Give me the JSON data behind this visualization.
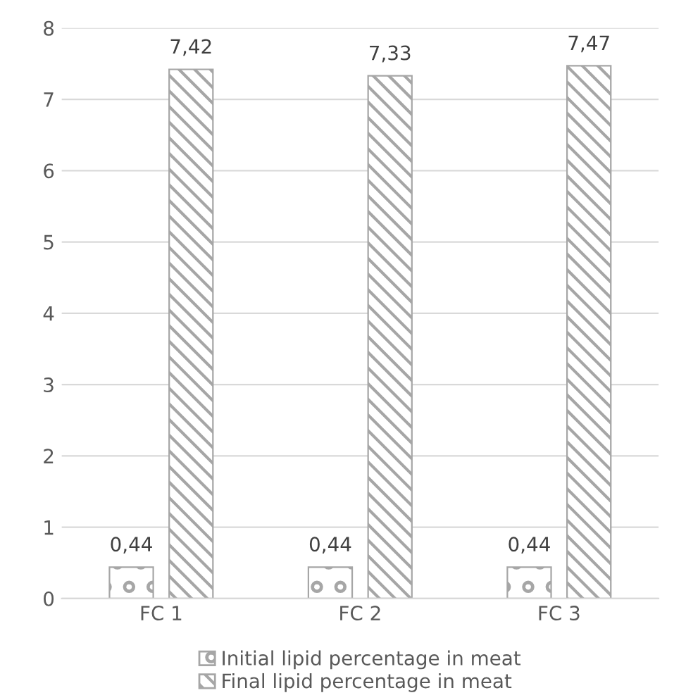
{
  "chart_data": {
    "type": "bar",
    "categories": [
      "FC 1",
      "FC 2",
      "FC 3"
    ],
    "series": [
      {
        "name": "Initial lipid percentage in meat",
        "color": "#a6a6a6",
        "values": [
          0.44,
          0.44,
          0.44
        ],
        "value_labels": [
          "0,44",
          "0,44",
          "0,44"
        ]
      },
      {
        "name": "Final lipid percentage in meat",
        "color": "#a6a6a6",
        "values": [
          7.42,
          7.33,
          7.47
        ],
        "value_labels": [
          "7,42",
          "7,33",
          "7,47"
        ]
      }
    ],
    "ylim": [
      0,
      8
    ],
    "yticks": [
      0,
      1,
      2,
      3,
      4,
      5,
      6,
      7,
      8
    ],
    "grid": "y",
    "legend": "bottom"
  }
}
